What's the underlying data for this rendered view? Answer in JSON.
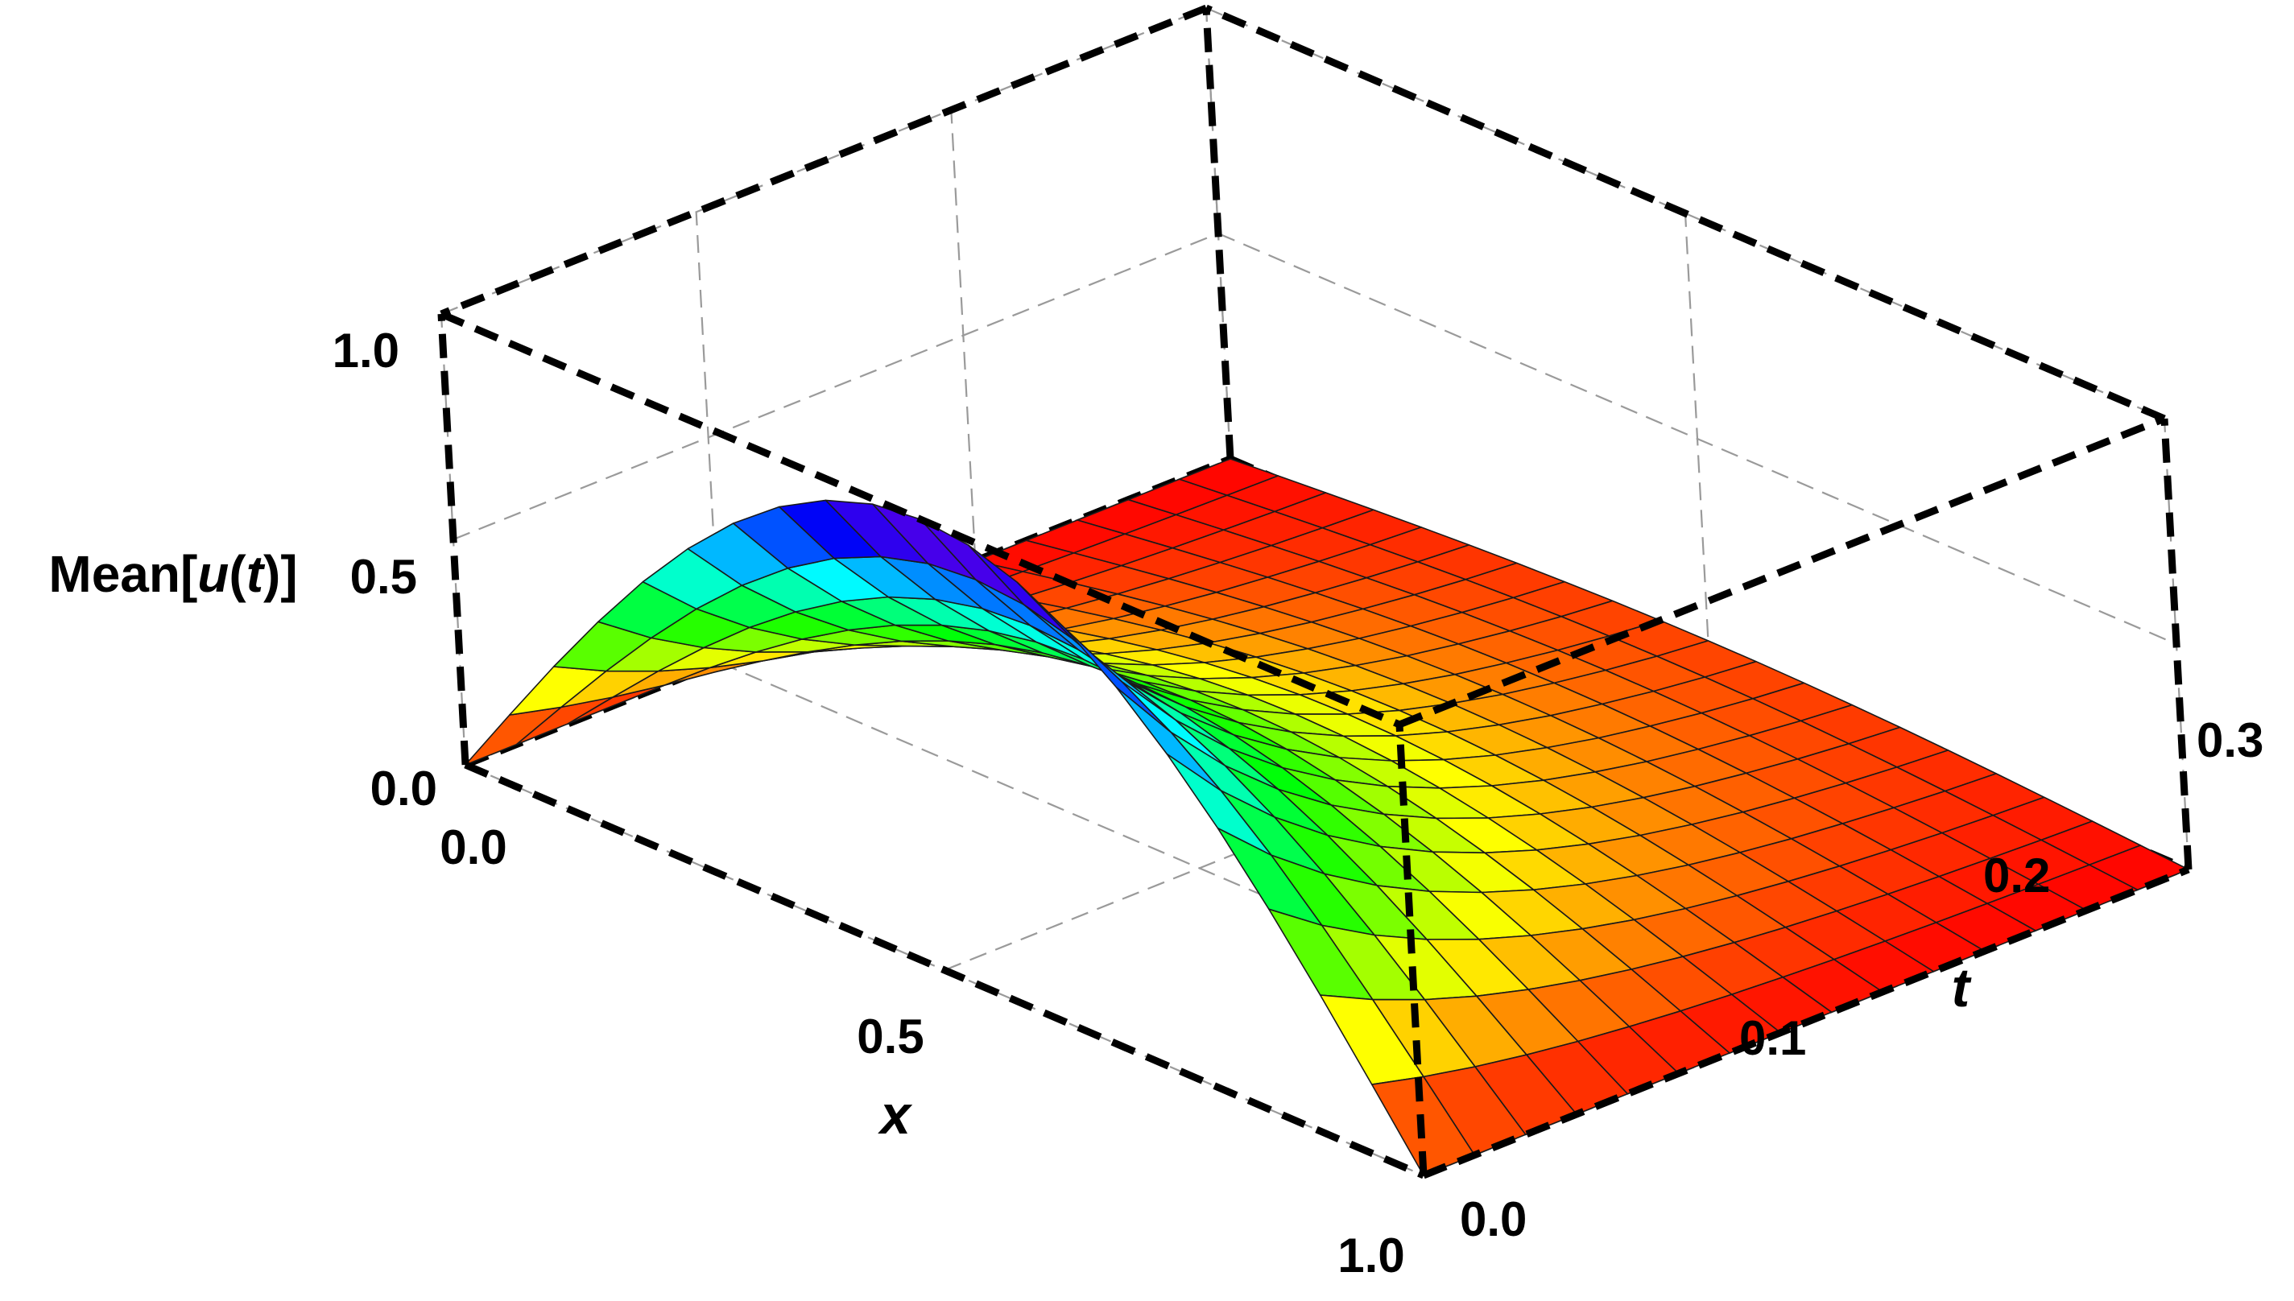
{
  "chart_data": {
    "type": "surface3d",
    "title": "",
    "xlabel": "x",
    "ylabel": "t",
    "zlabel_parts": [
      "Mean[",
      "u",
      "(",
      "t",
      ")]"
    ],
    "xlim": [
      0,
      1
    ],
    "ylim": [
      0,
      0.3
    ],
    "zlim": [
      0,
      1
    ],
    "x_ticks": [
      "0.0",
      "0.5",
      "1.0"
    ],
    "y_ticks": [
      "0.0",
      "0.1",
      "0.2",
      "0.3"
    ],
    "z_ticks": [
      "0.0",
      "0.5",
      "1.0"
    ],
    "function": "sin(pi*x)*exp(-pi^2*t)",
    "x": [
      0.0,
      0.05,
      0.1,
      0.15,
      0.2,
      0.25,
      0.3,
      0.35,
      0.4,
      0.45,
      0.5,
      0.55,
      0.6,
      0.65,
      0.7,
      0.75,
      0.8,
      0.85,
      0.9,
      0.95,
      1.0
    ],
    "t": [
      0.0,
      0.02,
      0.04,
      0.06,
      0.08,
      0.1,
      0.12,
      0.14,
      0.16,
      0.18,
      0.2,
      0.22,
      0.24,
      0.26,
      0.28,
      0.3
    ],
    "z_at_t0": [
      0.0,
      0.156,
      0.309,
      0.454,
      0.588,
      0.707,
      0.809,
      0.891,
      0.951,
      0.988,
      1.0,
      0.988,
      0.951,
      0.891,
      0.809,
      0.707,
      0.588,
      0.454,
      0.309,
      0.156,
      0.0
    ],
    "z_decay_factor": [
      1.0,
      0.821,
      0.674,
      0.553,
      0.454,
      0.373,
      0.306,
      0.251,
      0.206,
      0.169,
      0.139,
      0.114,
      0.094,
      0.077,
      0.063,
      0.052
    ],
    "colormap": "rainbow: low=red, high=violet",
    "box": "dashed black edges",
    "grid": true
  }
}
